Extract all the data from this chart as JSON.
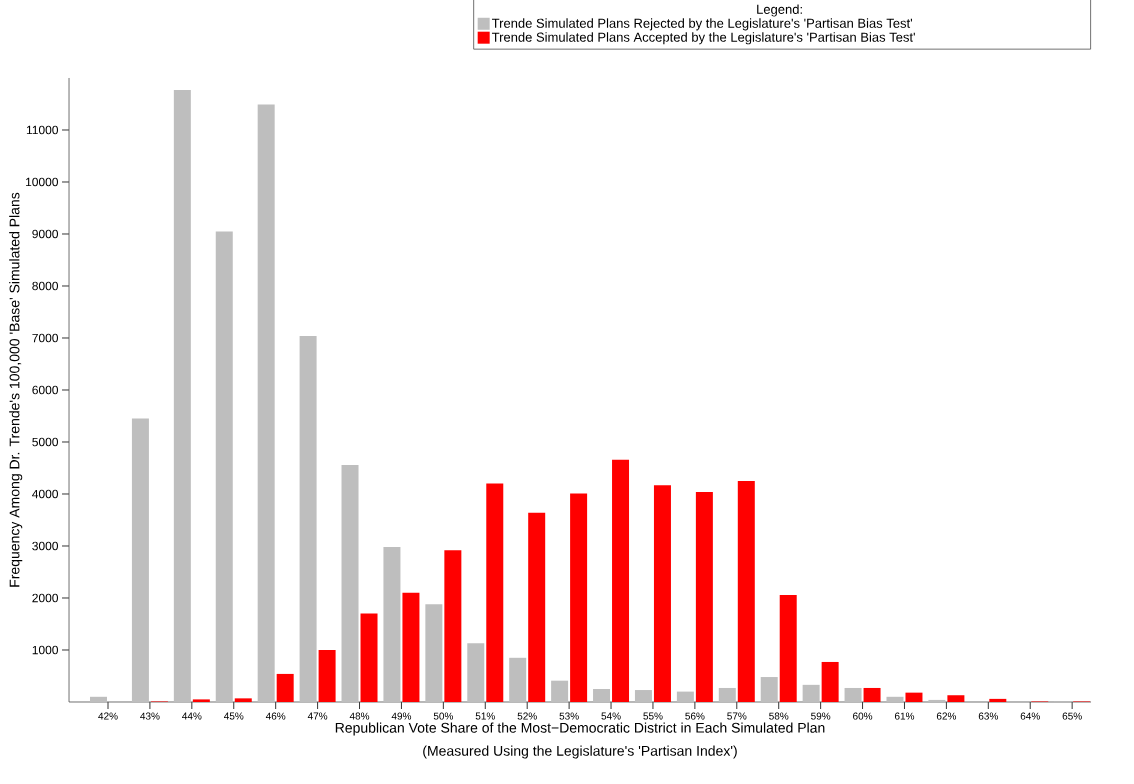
{
  "chart_data": {
    "type": "bar",
    "xlabel": "Republican Vote Share of the Most−Democratic District in Each Simulated Plan",
    "ylabel": "Frequency Among Dr. Trende's 100,000 'Base' Simulated Plans",
    "legend_title": "Legend:",
    "annotations": [
      "(Measured Using the Legislature's 'Partisan Index')"
    ],
    "categories": [
      "42%",
      "43%",
      "44%",
      "45%",
      "46%",
      "47%",
      "48%",
      "49%",
      "50%",
      "51%",
      "52%",
      "53%",
      "54%",
      "55%",
      "56%",
      "57%",
      "58%",
      "59%",
      "60%",
      "61%",
      "62%",
      "63%",
      "64%",
      "65%"
    ],
    "series": [
      {
        "name": "Trende Simulated Plans Rejected by the Legislature's 'Partisan Bias Test'",
        "color": "#bebebe",
        "values": [
          100,
          5450,
          11770,
          9050,
          11490,
          7040,
          4560,
          2980,
          1880,
          1130,
          850,
          410,
          250,
          230,
          200,
          270,
          480,
          330,
          270,
          100,
          40,
          null,
          null,
          10
        ]
      },
      {
        "name": "Trende Simulated Plans Accepted by the Legislature's 'Partisan Bias Test'",
        "color": "#ff0000",
        "values": [
          0,
          10,
          50,
          70,
          540,
          1000,
          1700,
          2100,
          2920,
          4200,
          3640,
          4010,
          4660,
          4170,
          4040,
          4250,
          2060,
          770,
          270,
          180,
          130,
          60,
          10,
          10
        ]
      }
    ],
    "ylim": [
      0,
      12000
    ],
    "yticks": [
      1000,
      2000,
      3000,
      4000,
      5000,
      6000,
      7000,
      8000,
      9000,
      10000,
      11000
    ],
    "legend": "top right",
    "grid": false
  }
}
